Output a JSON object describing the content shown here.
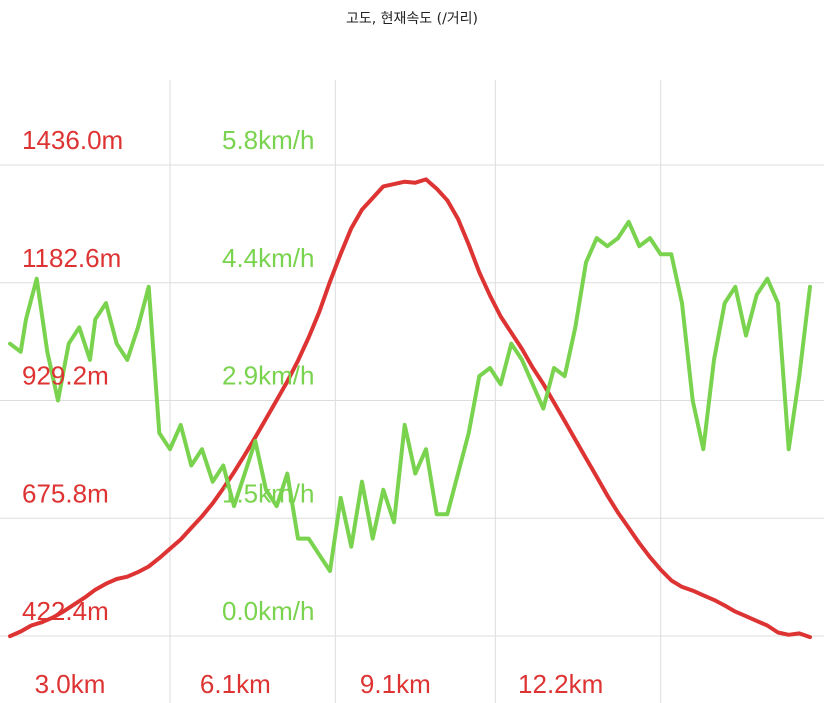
{
  "chart_data": {
    "type": "line",
    "title": "고도, 현재속도 (/거리)",
    "x_unit": "km",
    "x_ticks": [
      "3.0km",
      "6.1km",
      "9.1km",
      "12.2km"
    ],
    "x_tick_values": [
      3.0,
      6.1,
      9.1,
      12.2
    ],
    "xlim": [
      0.0,
      15.0
    ],
    "grid": true,
    "colors": {
      "altitude": "#dd3333",
      "speed": "#7ad34e",
      "grid": "#dddddd",
      "title": "#222222"
    },
    "axes": [
      {
        "series": "altitude",
        "unit": "m",
        "ylim": [
          422.4,
          1436.0
        ],
        "tick_labels": [
          "1436.0m",
          "1182.6m",
          "929.2m",
          "675.8m",
          "422.4m"
        ]
      },
      {
        "series": "speed",
        "unit": "km/h",
        "ylim": [
          0.0,
          5.8
        ],
        "tick_labels": [
          "5.8km/h",
          "4.4km/h",
          "2.9km/h",
          "1.5km/h",
          "0.0km/h"
        ]
      }
    ],
    "series": [
      {
        "key": "altitude",
        "axis": 0,
        "x": [
          0.0,
          0.2,
          0.4,
          0.6,
          0.8,
          1.0,
          1.2,
          1.4,
          1.6,
          1.8,
          2.0,
          2.2,
          2.4,
          2.6,
          2.8,
          3.0,
          3.2,
          3.4,
          3.6,
          3.8,
          4.0,
          4.2,
          4.4,
          4.6,
          4.8,
          5.0,
          5.2,
          5.4,
          5.6,
          5.8,
          6.0,
          6.2,
          6.4,
          6.6,
          6.8,
          7.0,
          7.2,
          7.4,
          7.6,
          7.8,
          8.0,
          8.2,
          8.4,
          8.6,
          8.8,
          9.0,
          9.2,
          9.4,
          9.6,
          9.8,
          10.0,
          10.2,
          10.4,
          10.6,
          10.8,
          11.0,
          11.2,
          11.4,
          11.6,
          11.8,
          12.0,
          12.2,
          12.4,
          12.6,
          12.8,
          13.0,
          13.2,
          13.4,
          13.6,
          13.8,
          14.0,
          14.2,
          14.4,
          14.6,
          14.8,
          15.0
        ],
        "values": [
          422,
          432,
          445,
          452,
          462,
          475,
          490,
          505,
          522,
          535,
          545,
          550,
          560,
          572,
          590,
          610,
          630,
          655,
          680,
          708,
          740,
          775,
          812,
          850,
          890,
          930,
          970,
          1015,
          1065,
          1120,
          1185,
          1245,
          1300,
          1340,
          1365,
          1390,
          1395,
          1400,
          1398,
          1405,
          1385,
          1360,
          1320,
          1265,
          1205,
          1155,
          1110,
          1075,
          1040,
          1000,
          965,
          925,
          885,
          845,
          805,
          765,
          725,
          688,
          655,
          622,
          592,
          565,
          542,
          528,
          520,
          510,
          500,
          488,
          475,
          465,
          455,
          445,
          430,
          425,
          428,
          420
        ]
      },
      {
        "key": "speed",
        "axis": 1,
        "x": [
          0.0,
          0.2,
          0.3,
          0.5,
          0.7,
          0.9,
          1.1,
          1.3,
          1.5,
          1.6,
          1.8,
          2.0,
          2.2,
          2.4,
          2.6,
          2.8,
          3.0,
          3.2,
          3.4,
          3.6,
          3.8,
          4.0,
          4.2,
          4.4,
          4.6,
          4.8,
          5.0,
          5.2,
          5.4,
          5.6,
          5.8,
          6.0,
          6.2,
          6.4,
          6.6,
          6.8,
          7.0,
          7.2,
          7.4,
          7.6,
          7.8,
          8.0,
          8.2,
          8.4,
          8.6,
          8.8,
          9.0,
          9.2,
          9.4,
          9.6,
          9.8,
          10.0,
          10.2,
          10.4,
          10.6,
          10.8,
          11.0,
          11.2,
          11.4,
          11.6,
          11.8,
          12.0,
          12.2,
          12.4,
          12.6,
          12.8,
          13.0,
          13.2,
          13.4,
          13.6,
          13.8,
          14.0,
          14.2,
          14.4,
          14.6,
          14.8,
          15.0
        ],
        "values": [
          3.6,
          3.5,
          3.9,
          4.4,
          3.5,
          2.9,
          3.6,
          3.8,
          3.4,
          3.9,
          4.1,
          3.6,
          3.4,
          3.8,
          4.3,
          2.5,
          2.3,
          2.6,
          2.1,
          2.3,
          1.9,
          2.1,
          1.6,
          2.0,
          2.4,
          1.8,
          1.6,
          2.0,
          1.2,
          1.2,
          1.0,
          0.8,
          1.7,
          1.1,
          1.9,
          1.2,
          1.8,
          1.4,
          2.6,
          2.0,
          2.3,
          1.5,
          1.5,
          2.0,
          2.5,
          3.2,
          3.3,
          3.1,
          3.6,
          3.4,
          3.1,
          2.8,
          3.3,
          3.2,
          3.8,
          4.6,
          4.9,
          4.8,
          4.9,
          5.1,
          4.8,
          4.9,
          4.7,
          4.7,
          4.1,
          2.9,
          2.3,
          3.4,
          4.1,
          4.3,
          3.7,
          4.2,
          4.4,
          4.1,
          2.3,
          3.2,
          4.3
        ]
      }
    ]
  }
}
